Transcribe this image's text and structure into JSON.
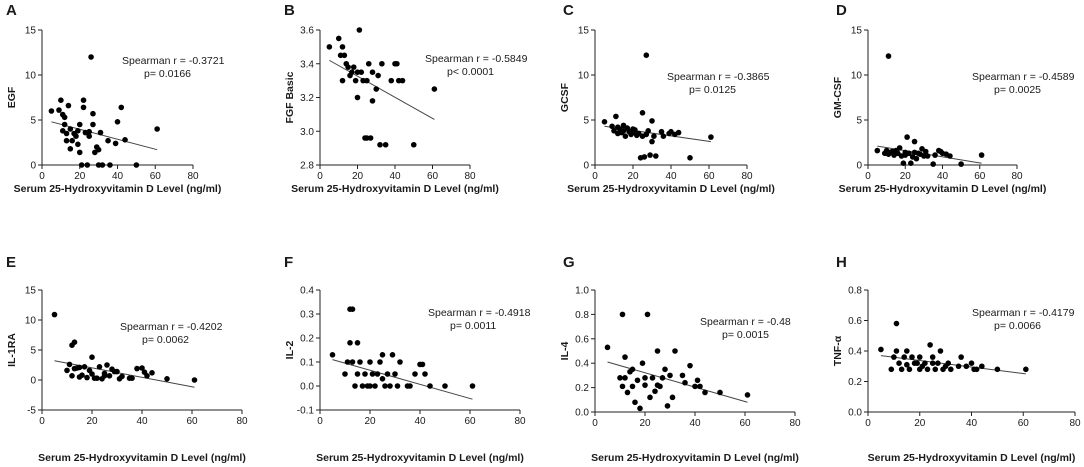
{
  "chart_data": [
    {
      "type": "scatter",
      "panel": "A",
      "ylabel": "EGF",
      "xlabel": "Serum 25-Hydroxyvitamin D Level (ng/ml)",
      "xlim": [
        0,
        80
      ],
      "ylim": [
        0,
        15
      ],
      "xticks": [
        "0",
        "20",
        "40",
        "60",
        "80"
      ],
      "yticks": [
        "0",
        "5",
        "10",
        "15"
      ],
      "annotation": [
        "Spearman r = -0.3721",
        "p= 0.0166"
      ],
      "trend": [
        [
          5,
          4.8
        ],
        [
          61,
          1.7
        ]
      ],
      "x": [
        5,
        9,
        10,
        11,
        11,
        12,
        12,
        13,
        13,
        14,
        15,
        15,
        16,
        17,
        18,
        19,
        19,
        20,
        20,
        21,
        22,
        22,
        23,
        24,
        25,
        25,
        26,
        27,
        27,
        28,
        29,
        30,
        30,
        31,
        32,
        35,
        36,
        39,
        40,
        42,
        44,
        50,
        61
      ],
      "y": [
        6,
        6.1,
        7.2,
        3.8,
        5.6,
        5.3,
        4.5,
        3.5,
        2.7,
        6.6,
        4,
        1.8,
        2.7,
        3.5,
        3.2,
        2.3,
        3.8,
        4.5,
        1.4,
        0,
        7.2,
        6.4,
        3.6,
        0,
        3.2,
        3.7,
        12,
        5.7,
        4.5,
        1.4,
        2,
        0,
        1.7,
        3.6,
        0,
        2.7,
        0,
        2.4,
        4.8,
        6.4,
        2.8,
        0,
        4
      ]
    },
    {
      "type": "scatter",
      "panel": "B",
      "ylabel": "FGF Basic",
      "xlabel": "Serum 25-Hydroxyvitamin D Level (ng/ml)",
      "xlim": [
        0,
        80
      ],
      "ylim": [
        2.8,
        3.6
      ],
      "xticks": [
        "0",
        "20",
        "40",
        "60",
        "80"
      ],
      "yticks": [
        "2.8",
        "3.0",
        "3.2",
        "3.4",
        "3.6"
      ],
      "annotation": [
        "Spearman r = -0.5849",
        "p< 0.0001"
      ],
      "trend": [
        [
          5,
          3.42
        ],
        [
          61,
          3.07
        ]
      ],
      "x": [
        5,
        10,
        11,
        12,
        12,
        13,
        14,
        15,
        16,
        17,
        18,
        19,
        20,
        20,
        21,
        22,
        23,
        24,
        25,
        25,
        26,
        27,
        28,
        28,
        30,
        31,
        32,
        33,
        35,
        38,
        40,
        41,
        42,
        44,
        50,
        61
      ],
      "y": [
        3.5,
        3.55,
        3.45,
        3.3,
        3.5,
        3.45,
        3.4,
        3.38,
        3.33,
        3.35,
        3.38,
        3.3,
        3.35,
        3.2,
        3.6,
        3.35,
        3.3,
        2.96,
        3.3,
        2.96,
        3.4,
        2.96,
        3.35,
        3.18,
        3.25,
        3.33,
        2.92,
        3.4,
        2.92,
        3.3,
        3.4,
        3.4,
        3.3,
        3.3,
        2.92,
        3.25
      ]
    },
    {
      "type": "scatter",
      "panel": "C",
      "ylabel": "GCSF",
      "xlabel": "Serum 25-Hydroxyvitamin D Level (ng/ml)",
      "xlim": [
        0,
        80
      ],
      "ylim": [
        0,
        15
      ],
      "xticks": [
        "0",
        "20",
        "40",
        "60",
        "80"
      ],
      "yticks": [
        "0",
        "5",
        "10",
        "15"
      ],
      "annotation": [
        "Spearman r = -0.3865",
        "p= 0.0125"
      ],
      "trend": [
        [
          5,
          4.3
        ],
        [
          61,
          2.6
        ]
      ],
      "x": [
        5,
        9,
        10,
        11,
        12,
        12,
        13,
        14,
        15,
        15,
        16,
        17,
        18,
        19,
        20,
        20,
        21,
        22,
        23,
        24,
        25,
        25,
        26,
        27,
        27,
        28,
        29,
        30,
        30,
        31,
        32,
        35,
        36,
        39,
        40,
        42,
        44,
        50,
        61
      ],
      "y": [
        4.8,
        4.3,
        3.8,
        5.4,
        4.2,
        3.5,
        4,
        3.6,
        4.4,
        3.8,
        3.2,
        4.1,
        3.7,
        3.4,
        4,
        3.6,
        3.9,
        3.3,
        3.5,
        0.8,
        3.2,
        5.8,
        0.9,
        12.2,
        3.4,
        3.8,
        1.1,
        2.6,
        4.9,
        3.2,
        1,
        3.7,
        3.2,
        3.5,
        3.7,
        3.4,
        3.6,
        0.8,
        3.1
      ]
    },
    {
      "type": "scatter",
      "panel": "D",
      "ylabel": "GM-CSF",
      "xlabel": "Serum 25-Hydroxyvitamin D Level (ng/ml)",
      "xlim": [
        0,
        80
      ],
      "ylim": [
        0,
        15
      ],
      "xticks": [
        "0",
        "20",
        "40",
        "60",
        "80"
      ],
      "yticks": [
        "0",
        "5",
        "10",
        "15"
      ],
      "annotation": [
        "Spearman r = -0.4589",
        "p= 0.0025"
      ],
      "trend": [
        [
          5,
          2.1
        ],
        [
          61,
          0.2
        ]
      ],
      "x": [
        5,
        9,
        10,
        11,
        11,
        12,
        13,
        14,
        15,
        16,
        17,
        18,
        19,
        20,
        20,
        21,
        22,
        23,
        24,
        25,
        25,
        26,
        27,
        28,
        29,
        30,
        31,
        32,
        35,
        36,
        38,
        39,
        40,
        42,
        44,
        50,
        61
      ],
      "y": [
        1.6,
        1.3,
        1.6,
        12.1,
        1.2,
        1.4,
        1.5,
        1.1,
        1.6,
        1.3,
        1.9,
        1,
        0.2,
        1.4,
        1.1,
        3.1,
        1.3,
        0.2,
        0.9,
        1.4,
        2.6,
        0.7,
        1.3,
        1.2,
        1.8,
        1,
        1.5,
        1,
        0.1,
        1.1,
        1.6,
        1.5,
        1.3,
        1.2,
        1,
        0.1,
        1.1
      ]
    },
    {
      "type": "scatter",
      "panel": "E",
      "ylabel": "IL-1RA",
      "xlabel": "Serum 25-Hydroxyvitamin D Level (ng/ml)",
      "xlim": [
        0,
        80
      ],
      "ylim": [
        -5,
        15
      ],
      "xticks": [
        "0",
        "20",
        "40",
        "60",
        "80"
      ],
      "yticks": [
        "-5",
        "0",
        "5",
        "10",
        "15"
      ],
      "annotation": [
        "Spearman r = -0.4202",
        "p= 0.0062"
      ],
      "trend": [
        [
          5,
          3.2
        ],
        [
          61,
          -1.2
        ]
      ],
      "x": [
        5,
        10,
        11,
        12,
        12,
        13,
        13,
        14,
        15,
        15,
        16,
        17,
        18,
        19,
        20,
        20,
        21,
        22,
        23,
        24,
        25,
        25,
        26,
        27,
        28,
        29,
        30,
        31,
        32,
        35,
        36,
        38,
        40,
        41,
        42,
        44,
        50,
        61
      ],
      "y": [
        10.9,
        1.6,
        2.6,
        5.8,
        0.7,
        6.3,
        1.9,
        2,
        0.5,
        2.1,
        0.8,
        2.2,
        0.4,
        1.6,
        3.8,
        1,
        0.3,
        0.3,
        2.2,
        0.2,
        0.7,
        1.1,
        2.5,
        0.7,
        1.8,
        1.4,
        1.4,
        0.2,
        0.6,
        0.3,
        0.3,
        1.9,
        2,
        1.3,
        0.7,
        1.2,
        0.2,
        0
      ]
    },
    {
      "type": "scatter",
      "panel": "F",
      "ylabel": "IL-2",
      "xlabel": "Serum 25-Hydroxyvitamin D Level (ng/ml)",
      "xlim": [
        0,
        80
      ],
      "ylim": [
        -0.1,
        0.4
      ],
      "xticks": [
        "0",
        "20",
        "40",
        "60",
        "80"
      ],
      "yticks": [
        "-0.1",
        "0.0",
        "0.1",
        "0.2",
        "0.3",
        "0.4"
      ],
      "annotation": [
        "Spearman r = -0.4918",
        "p= 0.0011"
      ],
      "trend": [
        [
          5,
          0.11
        ],
        [
          61,
          -0.055
        ]
      ],
      "x": [
        5,
        10,
        11,
        12,
        12,
        13,
        13,
        14,
        15,
        15,
        16,
        17,
        18,
        19,
        20,
        20,
        21,
        22,
        23,
        24,
        25,
        25,
        26,
        27,
        28,
        29,
        30,
        31,
        32,
        35,
        36,
        38,
        40,
        41,
        42,
        44,
        50,
        61
      ],
      "y": [
        0.13,
        0.05,
        0.1,
        0.32,
        0.18,
        0.32,
        0.1,
        0,
        0.18,
        0.05,
        0.1,
        0,
        0.05,
        0,
        0,
        0.1,
        0.05,
        0,
        0.05,
        0.1,
        0.13,
        0.03,
        0,
        0.05,
        0,
        0.13,
        0.05,
        0,
        0.1,
        0,
        0,
        0.05,
        0.09,
        0.09,
        0.05,
        0,
        0,
        0
      ]
    },
    {
      "type": "scatter",
      "panel": "G",
      "ylabel": "IL-4",
      "xlabel": "Serum 25-Hydroxyvitamin D Level (ng/ml)",
      "xlim": [
        0,
        80
      ],
      "ylim": [
        0.0,
        1.0
      ],
      "xticks": [
        "0",
        "20",
        "40",
        "60",
        "80"
      ],
      "yticks": [
        "0.0",
        "0.2",
        "0.4",
        "0.6",
        "0.8",
        "1.0"
      ],
      "annotation": [
        "Spearman r = -0.48",
        "p= 0.0015"
      ],
      "trend": [
        [
          5,
          0.41
        ],
        [
          61,
          0.08
        ]
      ],
      "x": [
        5,
        10,
        11,
        11,
        12,
        12,
        13,
        14,
        15,
        15,
        16,
        17,
        18,
        19,
        20,
        20,
        21,
        22,
        23,
        24,
        25,
        25,
        26,
        27,
        28,
        29,
        30,
        31,
        32,
        35,
        36,
        38,
        40,
        41,
        42,
        44,
        50,
        61
      ],
      "y": [
        0.53,
        0.28,
        0.8,
        0.21,
        0.28,
        0.45,
        0.16,
        0.33,
        0.21,
        0.35,
        0.08,
        0.26,
        0.03,
        0.4,
        0.22,
        0.28,
        0.8,
        0.12,
        0.28,
        0.17,
        0.22,
        0.5,
        0.21,
        0.28,
        0.35,
        0.05,
        0.3,
        0.12,
        0.5,
        0.3,
        0.24,
        0.38,
        0.21,
        0.26,
        0.21,
        0.16,
        0.16,
        0.14
      ]
    },
    {
      "type": "scatter",
      "panel": "H",
      "ylabel": "TNF-α",
      "xlabel": "Serum 25-Hydroxyvitamin D Level (ng/ml)",
      "xlim": [
        0,
        80
      ],
      "ylim": [
        0.0,
        0.8
      ],
      "xticks": [
        "0",
        "20",
        "40",
        "60",
        "80"
      ],
      "yticks": [
        "0.0",
        "0.2",
        "0.4",
        "0.6",
        "0.8"
      ],
      "annotation": [
        "Spearman r = -0.4179",
        "p= 0.0066"
      ],
      "trend": [
        [
          5,
          0.37
        ],
        [
          61,
          0.25
        ]
      ],
      "x": [
        5,
        9,
        10,
        11,
        11,
        12,
        13,
        14,
        15,
        15,
        16,
        17,
        18,
        19,
        20,
        20,
        21,
        22,
        23,
        24,
        25,
        25,
        26,
        27,
        28,
        29,
        30,
        31,
        32,
        35,
        36,
        38,
        40,
        41,
        42,
        44,
        50,
        61
      ],
      "y": [
        0.41,
        0.28,
        0.36,
        0.58,
        0.4,
        0.32,
        0.28,
        0.36,
        0.31,
        0.4,
        0.28,
        0.36,
        0.32,
        0.32,
        0.28,
        0.36,
        0.3,
        0.32,
        0.28,
        0.44,
        0.32,
        0.36,
        0.28,
        0.32,
        0.4,
        0.28,
        0.3,
        0.32,
        0.28,
        0.3,
        0.36,
        0.3,
        0.32,
        0.28,
        0.28,
        0.3,
        0.28,
        0.28
      ]
    }
  ]
}
